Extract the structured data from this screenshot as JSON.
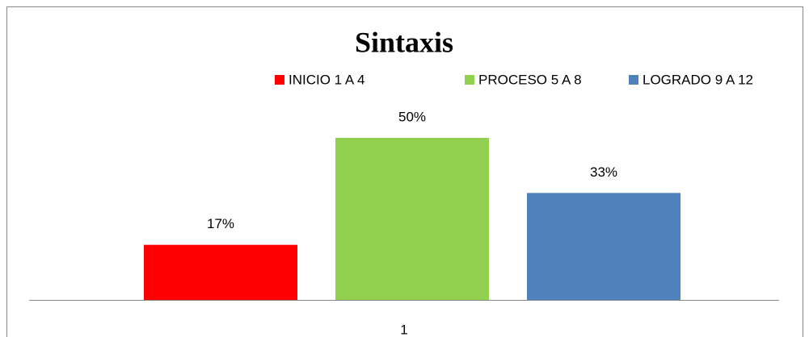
{
  "chart_data": {
    "type": "bar",
    "title": "Sintaxis",
    "categories": [
      "1"
    ],
    "series": [
      {
        "name": "INICIO 1 A 4",
        "color": "#ff0000",
        "values": [
          17
        ],
        "value_labels": [
          "17%"
        ]
      },
      {
        "name": "PROCESO 5 A 8",
        "color": "#92d050",
        "values": [
          50
        ],
        "value_labels": [
          "50%"
        ]
      },
      {
        "name": "LOGRADO 9 A 12",
        "color": "#4f81bd",
        "values": [
          33
        ],
        "value_labels": [
          "33%"
        ]
      }
    ],
    "legend": "top"
  }
}
